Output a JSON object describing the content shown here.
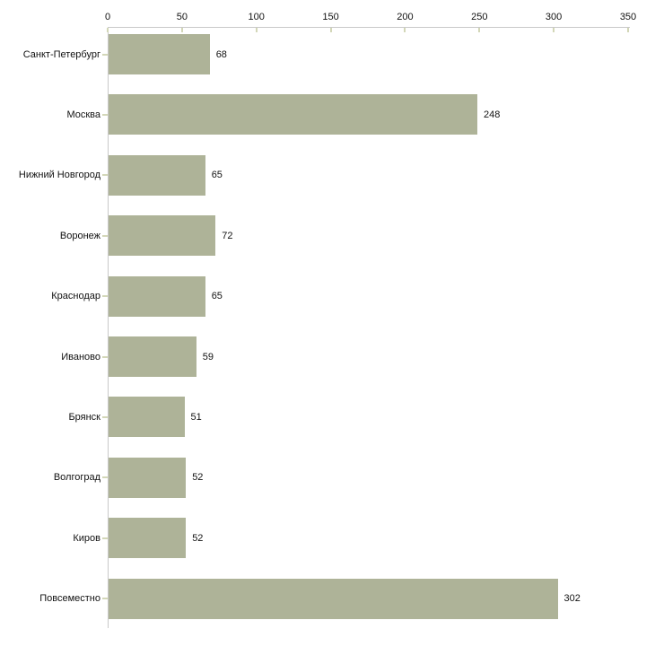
{
  "chart_data": {
    "type": "bar",
    "orientation": "horizontal",
    "title": "",
    "xlabel": "",
    "ylabel": "",
    "categories": [
      "Санкт-Петербург",
      "Москва",
      "Нижний Новгород",
      "Воронеж",
      "Краснодар",
      "Иваново",
      "Брянск",
      "Волгоград",
      "Киров",
      "Повсеместно"
    ],
    "values": [
      68,
      248,
      65,
      72,
      65,
      59,
      51,
      52,
      52,
      302
    ],
    "x_ticks": [
      0,
      50,
      100,
      150,
      200,
      250,
      300,
      350
    ],
    "xlim": [
      0,
      350
    ],
    "axis_position": "top",
    "grid": false,
    "legend": false,
    "colors": {
      "bar_fill": "#aeb398",
      "axis_line": "#c9c9c9",
      "tick_mark": "#d3d7b8",
      "text": "#111111",
      "background": "#ffffff"
    }
  }
}
